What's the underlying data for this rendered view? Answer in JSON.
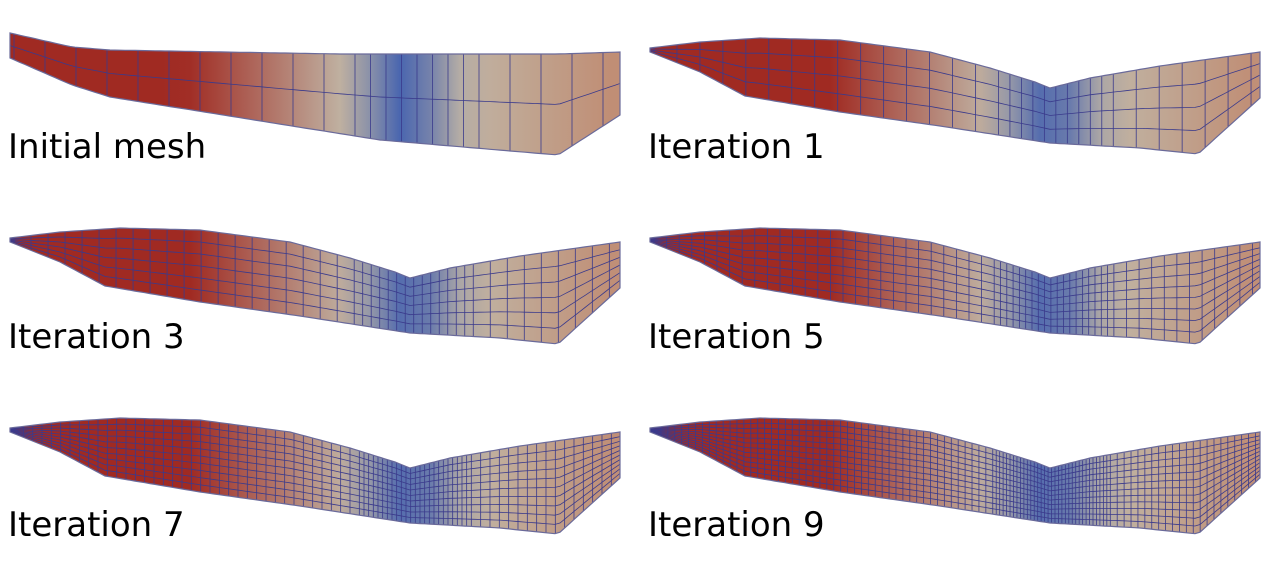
{
  "panels": [
    {
      "label": "Initial mesh",
      "shape": "initial",
      "refine": 0
    },
    {
      "label": "Iteration 1",
      "shape": "dip",
      "refine": 1
    },
    {
      "label": "Iteration 3",
      "shape": "dip",
      "refine": 2
    },
    {
      "label": "Iteration 5",
      "shape": "dip",
      "refine": 3
    },
    {
      "label": "Iteration 7",
      "shape": "dip",
      "refine": 4
    },
    {
      "label": "Iteration 9",
      "shape": "dip",
      "refine": 5
    }
  ],
  "colors": {
    "hot": "#a02a22",
    "mid": "#c0b4a4",
    "cold": "#3f5fb0",
    "grid": "#3a3a8c",
    "edge": "#6a6a9a"
  }
}
